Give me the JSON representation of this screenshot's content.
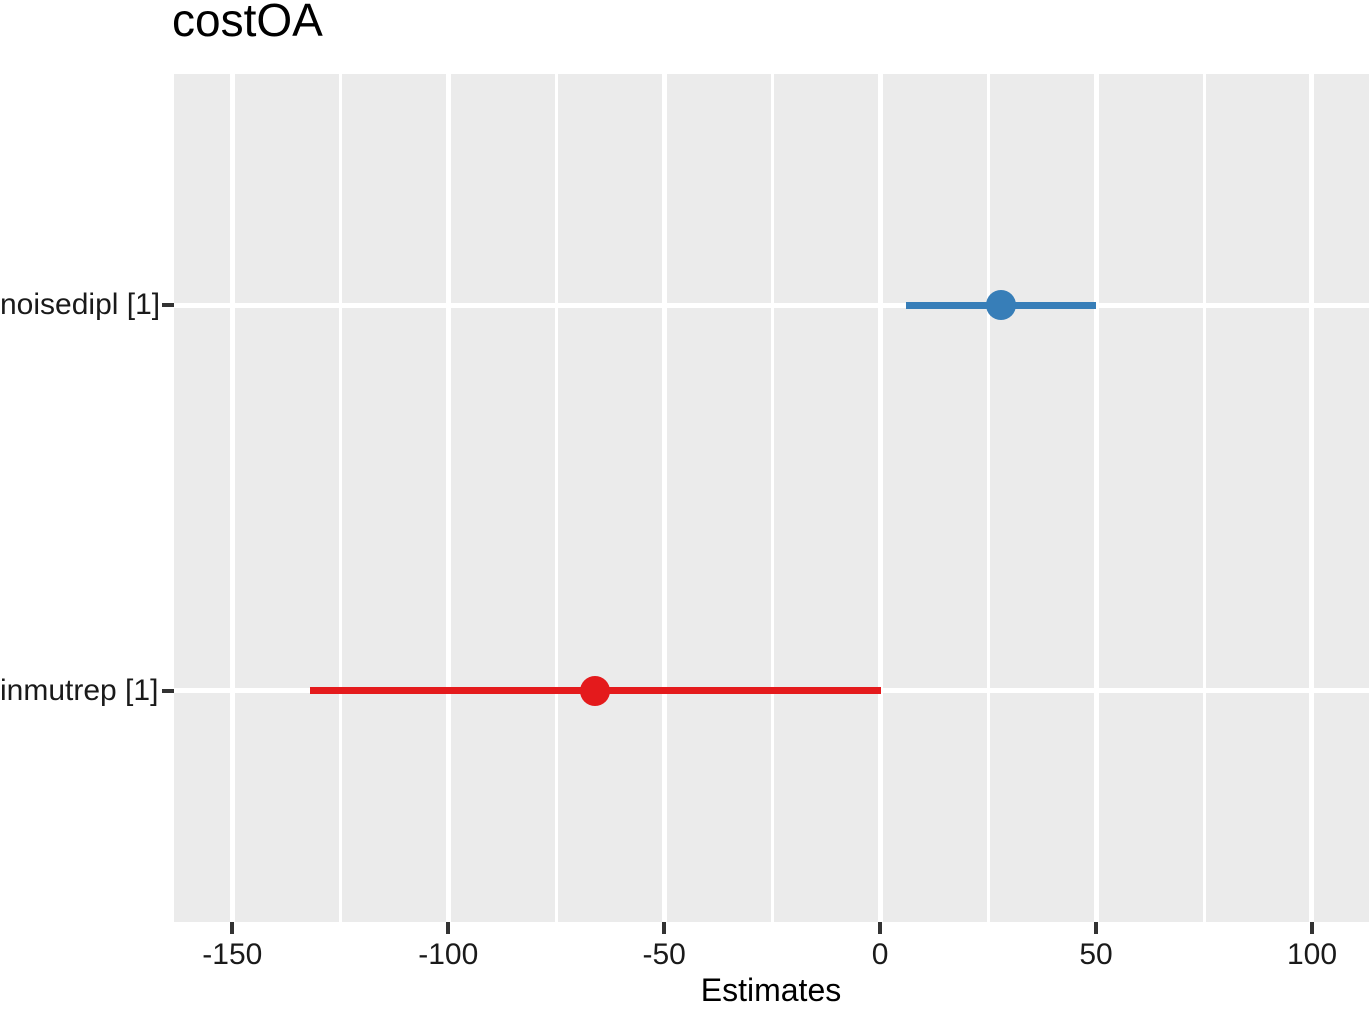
{
  "chart_data": {
    "type": "forest",
    "title": "costOA",
    "xlabel": "Estimates",
    "x_ticks": [
      -150,
      -100,
      -50,
      0,
      50,
      100
    ],
    "x_range": [
      -163.5,
      113.2
    ],
    "legend": "none",
    "grid": {
      "vertical": "major+minor",
      "horizontal": "major-only"
    },
    "terms": [
      {
        "label": "noisedipl [1]",
        "estimate": 28,
        "ci_low": 6,
        "ci_high": 50,
        "color": "#377EB8",
        "direction": "positive"
      },
      {
        "label": "inmutrep [1]",
        "estimate": -66,
        "ci_low": -132,
        "ci_high": 0.2,
        "color": "#E41A1C",
        "direction": "negative"
      }
    ],
    "colors": {
      "panel_background": "#EBEBEB",
      "grid_major": "#FFFFFF",
      "grid_minor": "#FFFFFF",
      "tick_mark": "#333333",
      "tick_text": "#1a1a1a",
      "title_text": "#000000"
    }
  }
}
